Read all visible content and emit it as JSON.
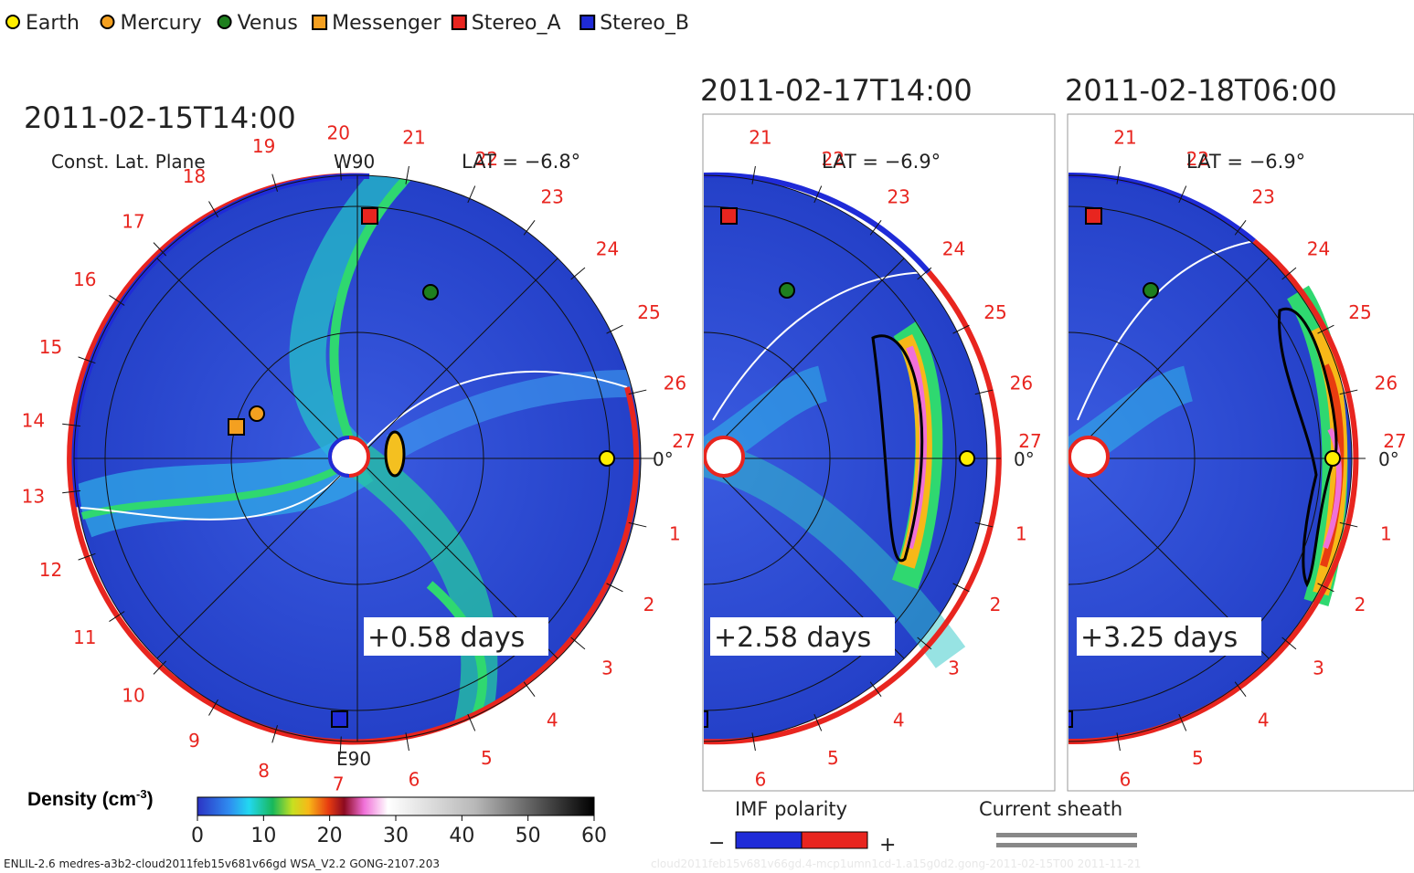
{
  "legend": [
    {
      "label": "Earth",
      "shape": "circle",
      "color": "#ffee00"
    },
    {
      "label": "Mercury",
      "shape": "circle",
      "color": "#f4a020"
    },
    {
      "label": "Venus",
      "shape": "circle",
      "color": "#1e7f1e"
    },
    {
      "label": "Messenger",
      "shape": "square",
      "color": "#f4a020"
    },
    {
      "label": "Stereo_A",
      "shape": "square",
      "color": "#e8251f"
    },
    {
      "label": "Stereo_B",
      "shape": "square",
      "color": "#1f2bd8"
    }
  ],
  "panels": [
    {
      "timestamp": "2011-02-15T14:00",
      "plane_label": "Const. Lat. Plane",
      "lat_label": "LAT = −6.8°",
      "top_label": "W90",
      "bottom_label": "E90",
      "zero_label": "0°",
      "offset": "+0.58 days"
    },
    {
      "timestamp": "2011-02-17T14:00",
      "lat_label": "LAT = −6.9°",
      "zero_label": "0°",
      "offset": "+2.58 days"
    },
    {
      "timestamp": "2011-02-18T06:00",
      "lat_label": "LAT = −6.9°",
      "zero_label": "0°",
      "offset": "+3.25 days"
    }
  ],
  "hour_labels": [
    "27",
    "1",
    "2",
    "3",
    "4",
    "5",
    "6",
    "7",
    "8",
    "9",
    "10",
    "11",
    "12",
    "13",
    "14",
    "15",
    "16",
    "17",
    "18",
    "19",
    "20",
    "21",
    "22",
    "23",
    "24",
    "25",
    "26"
  ],
  "colorbar": {
    "title": "Density (cm",
    "title_exp": "-3",
    "title_end": ")",
    "ticks": [
      "0",
      "10",
      "20",
      "30",
      "40",
      "50",
      "60"
    ]
  },
  "imf": {
    "title": "IMF polarity",
    "minus": "−",
    "plus": "+",
    "neg_color": "#1f2bd8",
    "pos_color": "#e8251f"
  },
  "sheath": {
    "title": "Current sheath"
  },
  "footer": "ENLIL-2.6 medres-a3b2-cloud2011feb15v681v66gd WSA_V2.2 GONG-2107.203",
  "footer_faint": "cloud2011feb15v681v66gd.4-mcp1umn1cd-1.a15g0d2.gong-2011-02-15T00   2011-11-21"
}
